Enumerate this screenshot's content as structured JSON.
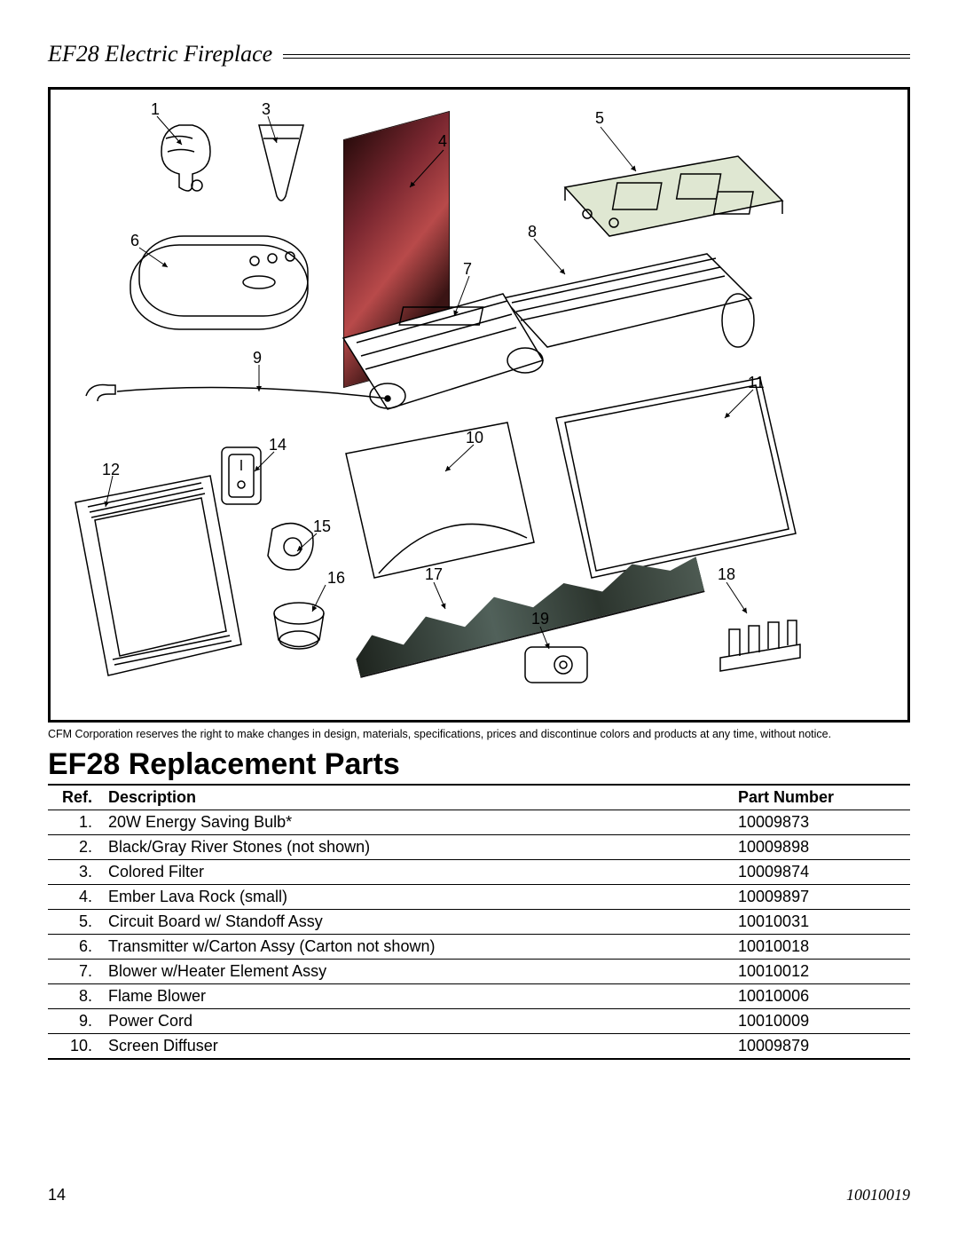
{
  "header": {
    "title": "EF28 Electric Fireplace"
  },
  "diagram": {
    "callouts": {
      "c1": "1",
      "c3": "3",
      "c4": "4",
      "c5": "5",
      "c6": "6",
      "c7": "7",
      "c8": "8",
      "c9": "9",
      "c10": "10",
      "c11": "11",
      "c12": "12",
      "c14": "14",
      "c15": "15",
      "c16": "16",
      "c17": "17",
      "c18": "18",
      "c19": "19"
    }
  },
  "disclaimer": "CFM Corporation reserves the right to make changes in design, materials, specifications, prices and discontinue colors and products at any time, without notice.",
  "section_title": "EF28 Replacement Parts",
  "table": {
    "headers": {
      "ref": "Ref.",
      "desc": "Description",
      "pn": "Part Number"
    },
    "rows": [
      {
        "ref": "1.",
        "desc": "20W Energy Saving Bulb*",
        "pn": "10009873"
      },
      {
        "ref": "2.",
        "desc": "Black/Gray River Stones (not shown)",
        "pn": "10009898"
      },
      {
        "ref": "3.",
        "desc": "Colored Filter",
        "pn": "10009874"
      },
      {
        "ref": "4.",
        "desc": "Ember Lava Rock (small)",
        "pn": "10009897"
      },
      {
        "ref": "5.",
        "desc": "Circuit Board w/ Standoff Assy",
        "pn": "10010031"
      },
      {
        "ref": "6.",
        "desc": "Transmitter w/Carton Assy (Carton not shown)",
        "pn": "10010018"
      },
      {
        "ref": "7.",
        "desc": "Blower w/Heater Element Assy",
        "pn": "10010012"
      },
      {
        "ref": "8.",
        "desc": "Flame Blower",
        "pn": "10010006"
      },
      {
        "ref": "9.",
        "desc": "Power Cord",
        "pn": "10010009"
      },
      {
        "ref": "10.",
        "desc": "Screen Diffuser",
        "pn": "10009879"
      }
    ]
  },
  "footer": {
    "page": "14",
    "docid": "10010019"
  },
  "colors": {
    "ember_rock": "#6b1f22",
    "log_set": "#3b4a3f",
    "board_bg": "#dfe7d2"
  }
}
